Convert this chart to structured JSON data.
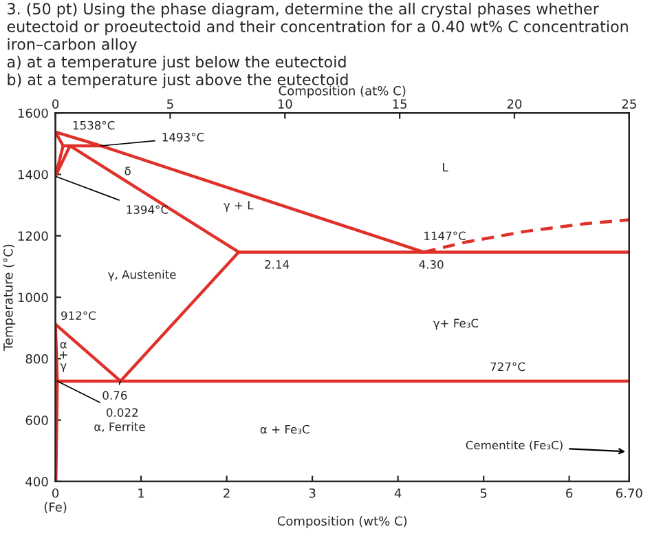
{
  "chart_data": {
    "type": "line",
    "title": "3. (50 pt) Using the phase diagram, determine the all crystal phases whether eutectoid or proeutectoid and their concentration for a 0.40 wt% C concentration iron–carbon alloy\na) at a temperature just below the eutectoid\nb) at a temperature just above the eutectoid",
    "xlabel": "Composition (wt% C)",
    "x2label": "Composition (at% C)",
    "ylabel": "Temperature (°C)",
    "xlim": [
      0,
      6.7
    ],
    "xticks": [
      {
        "value": 0,
        "label": "0\n(Fe)"
      },
      1,
      2,
      3,
      4,
      5,
      6,
      {
        "value": 6.7,
        "label": "6.70"
      }
    ],
    "x2lim": [
      0,
      25
    ],
    "x2ticks": [
      0,
      5,
      10,
      15,
      20,
      25
    ],
    "ylim": [
      400,
      1600
    ],
    "yticks": [
      400,
      600,
      800,
      1000,
      1200,
      1400,
      1600
    ],
    "grid": false,
    "legend": false,
    "series": [
      {
        "color": "#e0302a",
        "x": [
          0,
          0.53,
          4.3
        ],
        "values": [
          1538,
          1493,
          1147
        ]
      },
      {
        "color": "#e0302a",
        "line_style": "dashed",
        "x": [
          4.3,
          4.8,
          5.5,
          6.2,
          6.7
        ],
        "values": [
          1147,
          1180,
          1215,
          1240,
          1252
        ]
      },
      {
        "color": "#e0302a",
        "x": [
          0,
          0.09
        ],
        "values": [
          1538,
          1493
        ]
      },
      {
        "color": "#e0302a",
        "x": [
          0.09,
          0.53
        ],
        "values": [
          1493,
          1493
        ]
      },
      {
        "color": "#e0302a",
        "x": [
          0.09,
          0,
          0.17
        ],
        "values": [
          1493,
          1394,
          1493
        ]
      },
      {
        "color": "#e0302a",
        "x": [
          0.17,
          2.14
        ],
        "values": [
          1493,
          1147
        ]
      },
      {
        "color": "#e0302a",
        "x": [
          2.14,
          6.7
        ],
        "values": [
          1147,
          1147
        ]
      },
      {
        "color": "#e0302a",
        "x": [
          2.14,
          0.76
        ],
        "values": [
          1147,
          727
        ]
      },
      {
        "color": "#e0302a",
        "x": [
          0,
          0.76
        ],
        "values": [
          912,
          727
        ]
      },
      {
        "color": "#e0302a",
        "x": [
          0.022,
          6.7
        ],
        "values": [
          727,
          727
        ]
      },
      {
        "color": "#e0302a",
        "x": [
          0,
          0.022,
          0.005
        ],
        "values": [
          912,
          727,
          400
        ]
      }
    ],
    "annotations": [
      {
        "text": "1538°C",
        "x": 0,
        "y": 1538
      },
      {
        "text": "1493°C",
        "x": 0.53,
        "y": 1493
      },
      "δ",
      {
        "text": "1394°C",
        "x": 0,
        "y": 1394
      },
      "γ + L",
      "L",
      {
        "text": "1147°C",
        "x": 4.3,
        "y": 1147
      },
      {
        "text": "2.14",
        "x": 2.14,
        "y": 1147
      },
      {
        "text": "4.30",
        "x": 4.3,
        "y": 1147
      },
      "γ, Austenite",
      {
        "text": "912°C",
        "x": 0,
        "y": 912
      },
      "γ+ Fe₃C",
      {
        "text": "727°C",
        "x": 5.28,
        "y": 727
      },
      "α",
      "+",
      "γ",
      {
        "text": "0.76",
        "x": 0.76,
        "y": 727
      },
      {
        "text": "0.022",
        "x": 0.022,
        "y": 727
      },
      "α, Ferrite",
      "α + Fe₃C",
      "Cementite (Fe₃C)"
    ]
  }
}
